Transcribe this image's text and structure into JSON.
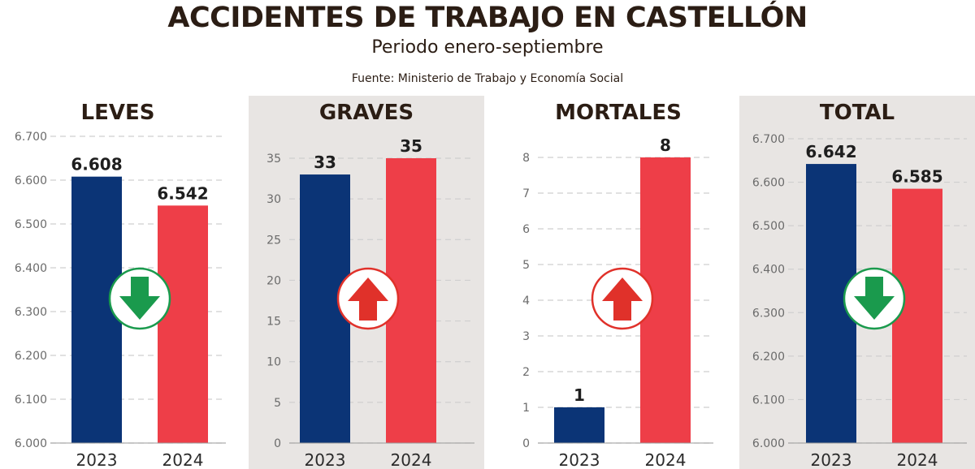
{
  "header": {
    "title": "ACCIDENTES DE TRABAJO EN CASTELLÓN",
    "subtitle": "Periodo enero-septiembre",
    "source": "Fuente: Ministerio de Trabajo y Economía Social"
  },
  "colors": {
    "bar_2023": "#0b3476",
    "bar_2024": "#ee3e48",
    "arrow_down": "#1a9a4d",
    "arrow_up": "#e0312a",
    "gridline": "#cfcfcf",
    "panel_shade": "#e8e5e3"
  },
  "chart_data": [
    {
      "type": "bar",
      "title": "LEVES",
      "categories": [
        "2023",
        "2024"
      ],
      "values": [
        6608,
        6542
      ],
      "value_labels": [
        "6.608",
        "6.542"
      ],
      "ylim": [
        6000,
        6700
      ],
      "yticks": [
        6000,
        6100,
        6200,
        6300,
        6400,
        6500,
        6600,
        6700
      ],
      "ytick_labels": [
        "6.000",
        "6.100",
        "6.200",
        "6.300",
        "6.400",
        "6.500",
        "6.600",
        "6.700"
      ],
      "trend": "down",
      "shaded": false,
      "grid": true
    },
    {
      "type": "bar",
      "title": "GRAVES",
      "categories": [
        "2023",
        "2024"
      ],
      "values": [
        33,
        35
      ],
      "value_labels": [
        "33",
        "35"
      ],
      "ylim": [
        0,
        35
      ],
      "yticks": [
        0,
        5,
        10,
        15,
        20,
        25,
        30,
        35
      ],
      "ytick_labels": [
        "0",
        "5",
        "10",
        "15",
        "20",
        "25",
        "30",
        "35"
      ],
      "trend": "up",
      "shaded": true,
      "grid": true
    },
    {
      "type": "bar",
      "title": "MORTALES",
      "categories": [
        "2023",
        "2024"
      ],
      "values": [
        1,
        8
      ],
      "value_labels": [
        "1",
        "8"
      ],
      "ylim": [
        0,
        8
      ],
      "yticks": [
        0,
        1,
        2,
        3,
        4,
        5,
        6,
        7,
        8
      ],
      "ytick_labels": [
        "0",
        "1",
        "2",
        "3",
        "4",
        "5",
        "6",
        "7",
        "8"
      ],
      "trend": "up",
      "shaded": false,
      "grid": true
    },
    {
      "type": "bar",
      "title": "TOTAL",
      "categories": [
        "2023",
        "2024"
      ],
      "values": [
        6642,
        6585
      ],
      "value_labels": [
        "6.642",
        "6.585"
      ],
      "ylim": [
        6000,
        6700
      ],
      "yticks": [
        6000,
        6100,
        6200,
        6300,
        6400,
        6500,
        6600,
        6700
      ],
      "ytick_labels": [
        "6.000",
        "6.100",
        "6.200",
        "6.300",
        "6.400",
        "6.500",
        "6.600",
        "6.700"
      ],
      "trend": "down",
      "shaded": true,
      "grid": true
    }
  ]
}
